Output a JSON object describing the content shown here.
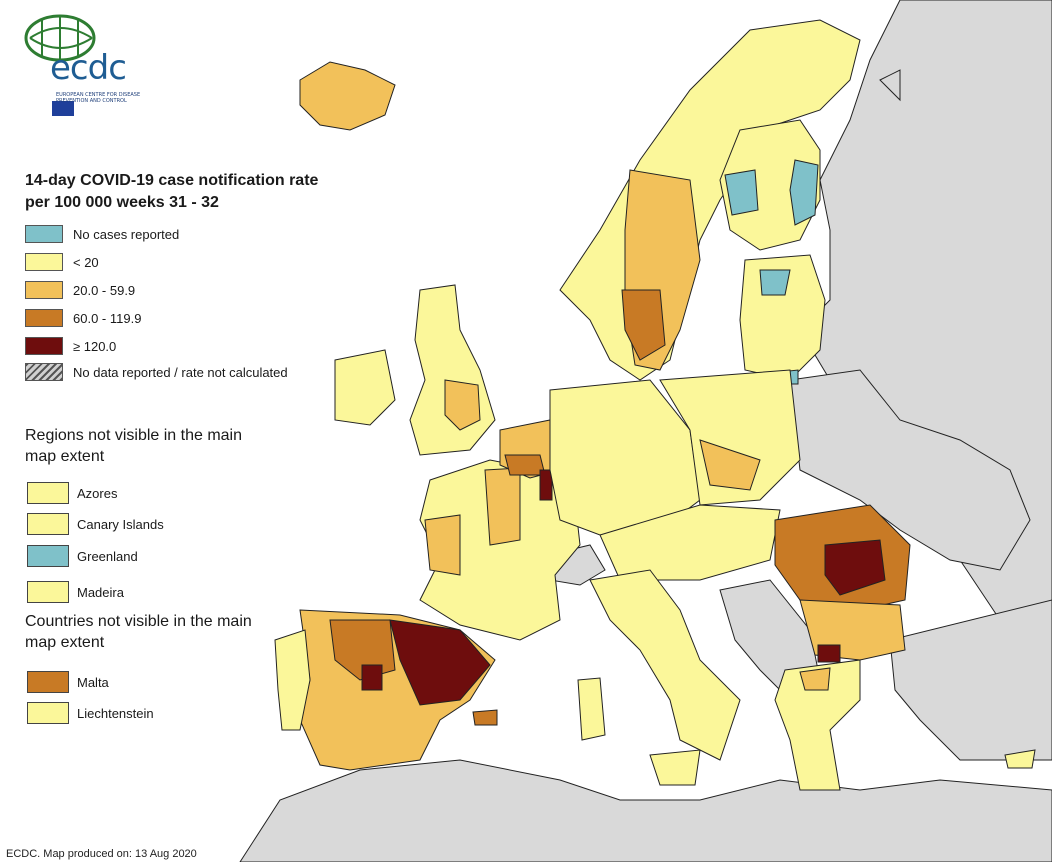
{
  "logo": {
    "word": "ecdc",
    "subtitle": "EUROPEAN CENTRE FOR DISEASE PREVENTION AND CONTROL",
    "icon": "globe-logo-icon"
  },
  "title": "14-day COVID-19 case notification rate per 100 000 weeks 31 - 32",
  "legend": [
    {
      "label": "No cases reported",
      "color": "#7fc1c9"
    },
    {
      "label": "< 20",
      "color": "#fbf79a"
    },
    {
      "label": "20.0 - 59.9",
      "color": "#f2c15a"
    },
    {
      "label": "60.0 - 119.9",
      "color": "#c87a25"
    },
    {
      "label": "≥ 120.0",
      "color": "#6e0d0d"
    },
    {
      "label": "No data reported / rate not calculated",
      "color": "hatch"
    }
  ],
  "regions_heading": "Regions not visible in the main map extent",
  "regions": [
    {
      "label": "Azores",
      "color": "#fbf79a"
    },
    {
      "label": "Canary Islands",
      "color": "#fbf79a"
    },
    {
      "label": "Greenland",
      "color": "#7fc1c9"
    },
    {
      "label": "Madeira",
      "color": "#fbf79a"
    }
  ],
  "countries_heading": "Countries not visible in the main map extent",
  "countries": [
    {
      "label": "Malta",
      "color": "#c87a25"
    },
    {
      "label": "Liechtenstein",
      "color": "#fbf79a"
    }
  ],
  "footer": "ECDC. Map produced on: 13 Aug 2020",
  "colors": {
    "sea": "#ffffff",
    "non_eu": "#d9d9d9",
    "border": "#222222"
  }
}
